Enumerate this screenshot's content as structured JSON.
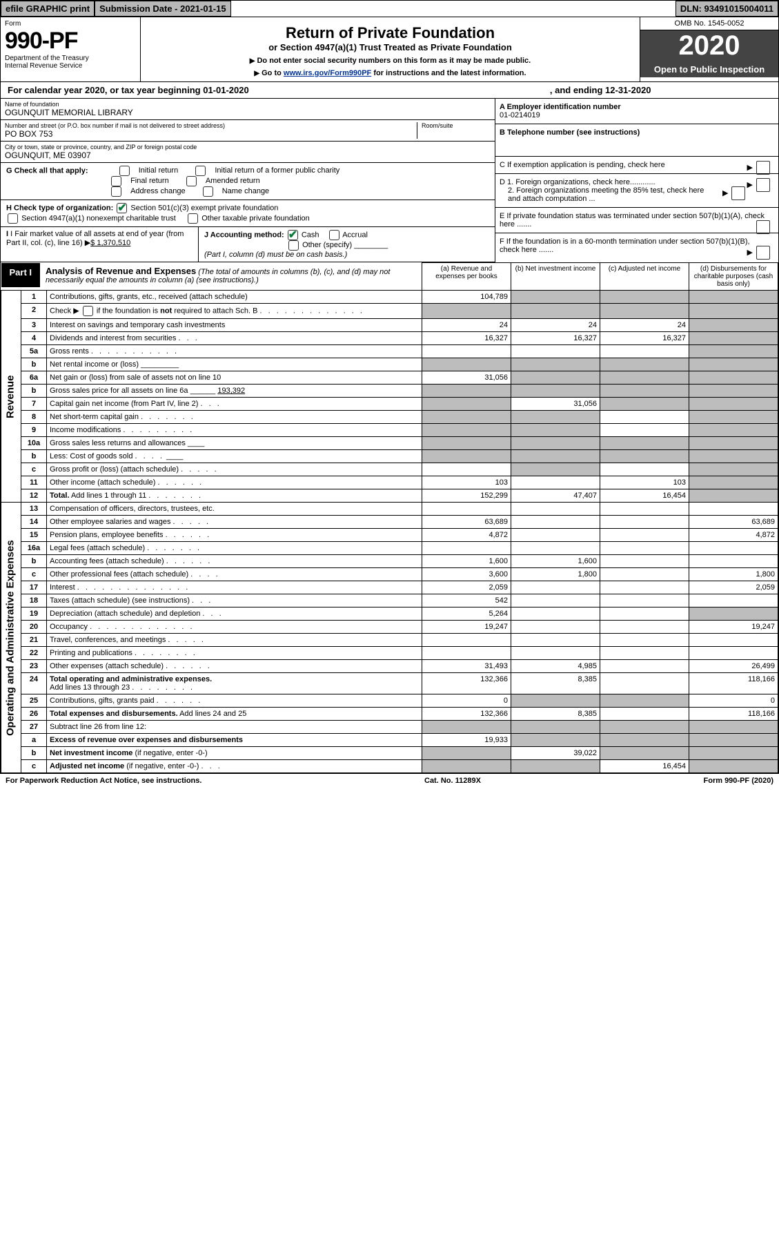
{
  "top_bar": {
    "efile": "efile GRAPHIC print",
    "sub_date_label": "Submission Date - 2021-01-15",
    "dln": "DLN: 93491015004011"
  },
  "header": {
    "form_label": "Form",
    "form_no": "990-PF",
    "dept": "Department of the Treasury",
    "irs": "Internal Revenue Service",
    "title": "Return of Private Foundation",
    "subtitle": "or Section 4947(a)(1) Trust Treated as Private Foundation",
    "notice1": "Do not enter social security numbers on this form as it may be made public.",
    "notice2_pre": "Go to ",
    "notice2_link": "www.irs.gov/Form990PF",
    "notice2_post": " for instructions and the latest information.",
    "omb": "OMB No. 1545-0052",
    "year": "2020",
    "open": "Open to Public Inspection"
  },
  "calendar": {
    "pre": "For calendar year 2020, or tax year beginning 01-01-2020",
    "mid": ", and ending 12-31-2020"
  },
  "filer": {
    "name_label": "Name of foundation",
    "name": "OGUNQUIT MEMORIAL LIBRARY",
    "addr_label": "Number and street (or P.O. box number if mail is not delivered to street address)",
    "addr": "PO BOX 753",
    "room_label": "Room/suite",
    "city_label": "City or town, state or province, country, and ZIP or foreign postal code",
    "city": "OGUNQUIT, ME  03907"
  },
  "right_info": {
    "a_label": "A Employer identification number",
    "a_val": "01-0214019",
    "b_label": "B Telephone number (see instructions)",
    "c_label": "C If exemption application is pending, check here",
    "d1": "D 1. Foreign organizations, check here............",
    "d2": "2. Foreign organizations meeting the 85% test, check here and attach computation ...",
    "e": "E If private foundation status was terminated under section 507(b)(1)(A), check here .......",
    "f": "F If the foundation is in a 60-month termination under section 507(b)(1)(B), check here ......."
  },
  "g": {
    "label": "G Check all that apply:",
    "opts": [
      "Initial return",
      "Initial return of a former public charity",
      "Final return",
      "Amended return",
      "Address change",
      "Name change"
    ]
  },
  "h": {
    "label": "H Check type of organization:",
    "opt1": "Section 501(c)(3) exempt private foundation",
    "opt2": "Section 4947(a)(1) nonexempt charitable trust",
    "opt3": "Other taxable private foundation"
  },
  "i": {
    "label": "I Fair market value of all assets at end of year (from Part II, col. (c), line 16)",
    "val": "$  1,370,510"
  },
  "j": {
    "label": "J Accounting method:",
    "cash": "Cash",
    "accrual": "Accrual",
    "other": "Other (specify)",
    "note": "(Part I, column (d) must be on cash basis.)"
  },
  "part1": {
    "tag": "Part I",
    "title": "Analysis of Revenue and Expenses",
    "note": "(The total of amounts in columns (b), (c), and (d) may not necessarily equal the amounts in column (a) (see instructions).)",
    "col_a": "(a)   Revenue and expenses per books",
    "col_b": "(b)  Net investment income",
    "col_c": "(c)  Adjusted net income",
    "col_d": "(d)  Disbursements for charitable purposes (cash basis only)"
  },
  "sides": {
    "rev": "Revenue",
    "exp": "Operating and Administrative Expenses"
  },
  "lines": [
    {
      "n": "1",
      "d": "",
      "a": "104,789",
      "b": "",
      "c": "",
      "sb": true,
      "sc": true,
      "sd": true
    },
    {
      "n": "2",
      "d": "",
      "dots": true,
      "a": "",
      "b": "",
      "c": "",
      "sa": true,
      "sb": true,
      "sc": true,
      "sd": true
    },
    {
      "n": "3",
      "d": "",
      "a": "24",
      "b": "24",
      "c": "24",
      "sd": true
    },
    {
      "n": "4",
      "d": "",
      "dots": true,
      "a": "16,327",
      "b": "16,327",
      "c": "16,327",
      "sd": true
    },
    {
      "n": "5a",
      "d": "",
      "dots": true,
      "a": "",
      "b": "",
      "c": "",
      "sd": true
    },
    {
      "n": "b",
      "d": "",
      "a": "",
      "b": "",
      "c": "",
      "sa": true,
      "sb": true,
      "sc": true,
      "sd": true
    },
    {
      "n": "6a",
      "d": "",
      "a": "31,056",
      "b": "",
      "c": "",
      "sb": true,
      "sc": true,
      "sd": true
    },
    {
      "n": "b",
      "d": "",
      "a": "",
      "b": "",
      "c": "",
      "sa": true,
      "sb": true,
      "sc": true,
      "sd": true
    },
    {
      "n": "7",
      "d": "",
      "dots": true,
      "a": "",
      "b": "31,056",
      "c": "",
      "sa": true,
      "sc": true,
      "sd": true
    },
    {
      "n": "8",
      "d": "",
      "dots": true,
      "a": "",
      "b": "",
      "c": "",
      "sa": true,
      "sb": true,
      "sd": true
    },
    {
      "n": "9",
      "d": "",
      "dots": true,
      "a": "",
      "b": "",
      "c": "",
      "sa": true,
      "sb": true,
      "sd": true
    },
    {
      "n": "10a",
      "d": "",
      "a": "",
      "b": "",
      "c": "",
      "sa": true,
      "sb": true,
      "sc": true,
      "sd": true
    },
    {
      "n": "b",
      "d": "",
      "dots": true,
      "a": "",
      "b": "",
      "c": "",
      "sa": true,
      "sb": true,
      "sc": true,
      "sd": true
    },
    {
      "n": "c",
      "d": "",
      "dots": true,
      "a": "",
      "b": "",
      "c": "",
      "sb": true,
      "sd": true
    },
    {
      "n": "11",
      "d": "",
      "dots": true,
      "a": "103",
      "b": "",
      "c": "103",
      "sd": true
    },
    {
      "n": "12",
      "d": "",
      "dots": true,
      "a": "152,299",
      "b": "47,407",
      "c": "16,454",
      "sd": true
    }
  ],
  "exp_lines": [
    {
      "n": "13",
      "d": "",
      "a": "",
      "b": "",
      "c": ""
    },
    {
      "n": "14",
      "d": "63,689",
      "dots": true,
      "a": "63,689",
      "b": "",
      "c": ""
    },
    {
      "n": "15",
      "d": "4,872",
      "dots": true,
      "a": "4,872",
      "b": "",
      "c": ""
    },
    {
      "n": "16a",
      "d": "",
      "dots": true,
      "a": "",
      "b": "",
      "c": ""
    },
    {
      "n": "b",
      "d": "",
      "dots": true,
      "a": "1,600",
      "b": "1,600",
      "c": ""
    },
    {
      "n": "c",
      "d": "1,800",
      "dots": true,
      "a": "3,600",
      "b": "1,800",
      "c": ""
    },
    {
      "n": "17",
      "d": "2,059",
      "dots": true,
      "a": "2,059",
      "b": "",
      "c": ""
    },
    {
      "n": "18",
      "d": "",
      "dots": true,
      "a": "542",
      "b": "",
      "c": ""
    },
    {
      "n": "19",
      "d": "",
      "dots": true,
      "a": "5,264",
      "b": "",
      "c": "",
      "sd": true
    },
    {
      "n": "20",
      "d": "19,247",
      "dots": true,
      "a": "19,247",
      "b": "",
      "c": ""
    },
    {
      "n": "21",
      "d": "",
      "dots": true,
      "a": "",
      "b": "",
      "c": ""
    },
    {
      "n": "22",
      "d": "",
      "dots": true,
      "a": "",
      "b": "",
      "c": ""
    },
    {
      "n": "23",
      "d": "26,499",
      "dots": true,
      "a": "31,493",
      "b": "4,985",
      "c": ""
    },
    {
      "n": "24",
      "d": "118,166",
      "dots": true,
      "a": "132,366",
      "b": "8,385",
      "c": ""
    },
    {
      "n": "25",
      "d": "0",
      "dots": true,
      "a": "0",
      "b": "",
      "c": "",
      "sb": true,
      "sc": true
    },
    {
      "n": "26",
      "d": "118,166",
      "a": "132,366",
      "b": "8,385",
      "c": ""
    },
    {
      "n": "27",
      "d": "",
      "a": "",
      "b": "",
      "c": "",
      "sa": true,
      "sb": true,
      "sc": true,
      "sd": true
    },
    {
      "n": "a",
      "d": "",
      "a": "19,933",
      "b": "",
      "c": "",
      "sb": true,
      "sc": true,
      "sd": true
    },
    {
      "n": "b",
      "d": "",
      "a": "",
      "b": "39,022",
      "c": "",
      "sa": true,
      "sc": true,
      "sd": true
    },
    {
      "n": "c",
      "d": "",
      "dots": true,
      "a": "",
      "b": "",
      "c": "16,454",
      "sa": true,
      "sb": true,
      "sd": true
    }
  ],
  "footer": {
    "left": "For Paperwork Reduction Act Notice, see instructions.",
    "mid": "Cat. No. 11289X",
    "right": "Form 990-PF (2020)"
  }
}
